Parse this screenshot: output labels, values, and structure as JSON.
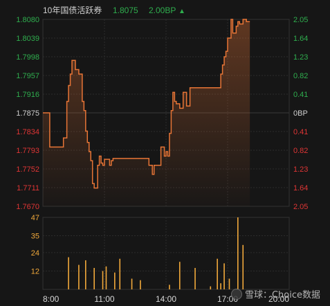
{
  "header": {
    "name": "10年国债活跃券",
    "price": "1.8075",
    "change": "2.00BP",
    "arrow": "▲"
  },
  "colors": {
    "background": "#161616",
    "grid": "#2c2c2c",
    "up": "#2fae4e",
    "down": "#e03535",
    "neutral": "#d0d0d0",
    "line": "#e87536",
    "volume": "#f2a93b"
  },
  "watermark": {
    "text": "雪球：Choice数据",
    "logo_icon": "snowball-logo-icon"
  },
  "chart_data": [
    {
      "type": "line",
      "title": "",
      "x_ticks": [
        "8:00",
        "11:00",
        "14:00",
        "17:00",
        "20:00"
      ],
      "x_range_minutes": [
        480,
        1200
      ],
      "y_left_ticks": [
        "1.8080",
        "1.8039",
        "1.7998",
        "1.7957",
        "1.7916",
        "1.7875",
        "1.7834",
        "1.7793",
        "1.7752",
        "1.7711",
        "1.7670"
      ],
      "y_right_ticks": [
        "2.05",
        "1.64",
        "1.23",
        "0.82",
        "0.41",
        "0BP",
        "0.41",
        "0.82",
        "1.23",
        "1.64",
        "2.05"
      ],
      "ylim": [
        1.767,
        1.808
      ],
      "reference": 1.7875,
      "grid": true,
      "series": [
        {
          "x": [
            "8:00",
            "8:15",
            "8:20",
            "8:40",
            "9:00",
            "9:10",
            "9:15",
            "9:20",
            "9:25",
            "9:35",
            "9:45",
            "9:55",
            "10:00",
            "10:05",
            "10:10",
            "10:15",
            "10:20",
            "10:25",
            "10:30",
            "10:40",
            "10:45",
            "10:50",
            "10:55",
            "11:00",
            "11:10",
            "11:15",
            "11:20",
            "11:25",
            "11:30",
            "11:35",
            "11:40",
            "12:00",
            "13:00",
            "13:10",
            "13:20",
            "13:25",
            "13:30",
            "13:35",
            "13:45",
            "13:55",
            "14:00",
            "14:05",
            "14:10",
            "14:15",
            "14:20",
            "14:25",
            "14:30",
            "14:40",
            "14:50",
            "15:00",
            "15:10",
            "15:20",
            "15:30",
            "16:30",
            "16:40",
            "16:45",
            "16:50",
            "16:55",
            "17:00",
            "17:10",
            "17:15",
            "17:20",
            "17:25",
            "17:30",
            "17:35",
            "17:45",
            "17:55",
            "18:05"
          ],
          "y": [
            1.7875,
            1.7875,
            1.78,
            1.78,
            1.782,
            1.79,
            1.7935,
            1.796,
            1.799,
            1.797,
            1.796,
            1.79,
            1.788,
            1.7835,
            1.781,
            1.779,
            1.777,
            1.772,
            1.771,
            1.776,
            1.778,
            1.7765,
            1.776,
            1.7773,
            1.7773,
            1.776,
            1.777,
            1.7775,
            1.7775,
            1.7775,
            1.7775,
            1.7775,
            1.7775,
            1.776,
            1.774,
            1.776,
            1.776,
            1.776,
            1.78,
            1.778,
            1.779,
            1.778,
            1.783,
            1.788,
            1.792,
            1.79,
            1.7895,
            1.7885,
            1.792,
            1.789,
            1.793,
            1.793,
            1.793,
            1.793,
            1.796,
            1.798,
            1.7998,
            1.801,
            1.8039,
            1.808,
            1.805,
            1.805,
            1.8065,
            1.8075,
            1.807,
            1.808,
            1.8075,
            1.8075
          ]
        }
      ]
    },
    {
      "type": "bar",
      "title": "",
      "y_ticks": [
        "47",
        "35",
        "24",
        "12"
      ],
      "ylim": [
        0,
        47
      ],
      "series": [
        {
          "x": [
            "9:15",
            "9:45",
            "10:05",
            "10:30",
            "10:55",
            "11:05",
            "11:30",
            "11:45",
            "12:20",
            "12:45",
            "14:10",
            "14:40",
            "15:25",
            "16:10",
            "16:30",
            "16:40",
            "16:50",
            "17:05",
            "17:30",
            "17:45"
          ],
          "values": [
            21,
            16,
            19,
            14,
            12,
            15,
            11,
            20,
            7,
            6,
            3,
            18,
            14,
            2,
            20,
            4,
            17,
            7,
            47,
            29
          ]
        }
      ]
    }
  ]
}
